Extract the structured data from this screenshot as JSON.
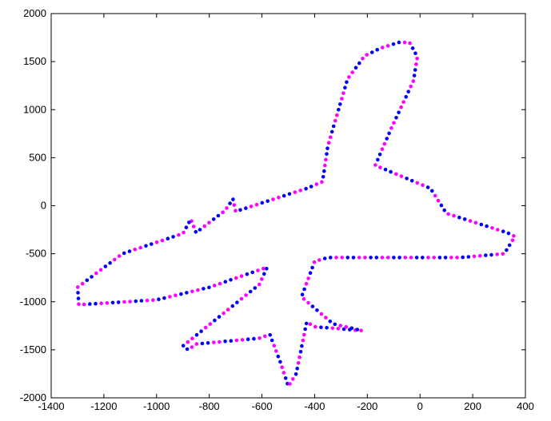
{
  "chart_data": {
    "type": "scatter",
    "title": "",
    "xlabel": "",
    "ylabel": "",
    "xlim": [
      -1400,
      400
    ],
    "ylim": [
      -2000,
      2000
    ],
    "x_ticks": [
      -1400,
      -1200,
      -1000,
      -800,
      -600,
      -400,
      -200,
      0,
      200,
      400
    ],
    "y_ticks": [
      -2000,
      -1500,
      -1000,
      -500,
      0,
      500,
      1000,
      1500,
      2000
    ],
    "x_tick_labels": [
      "-1400",
      "-1200",
      "-1000",
      "-800",
      "-600",
      "-400",
      "-200",
      "0",
      "200",
      "400"
    ],
    "y_tick_labels": [
      "-2000",
      "-1500",
      "-1000",
      "-500",
      "0",
      "500",
      "1000",
      "1500",
      "2000"
    ],
    "grid": false,
    "legend": "none",
    "series_colors": [
      "#0000ff",
      "#ff00ff"
    ],
    "outline": [
      [
        -80,
        1700
      ],
      [
        -150,
        1640
      ],
      [
        -210,
        1560
      ],
      [
        -275,
        1320
      ],
      [
        -350,
        620
      ],
      [
        -370,
        250
      ],
      [
        -430,
        180
      ],
      [
        -700,
        -60
      ],
      [
        -710,
        70
      ],
      [
        -740,
        -50
      ],
      [
        -850,
        -280
      ],
      [
        -870,
        -140
      ],
      [
        -900,
        -290
      ],
      [
        -1130,
        -500
      ],
      [
        -1300,
        -850
      ],
      [
        -1295,
        -1030
      ],
      [
        -1230,
        -1020
      ],
      [
        -1000,
        -980
      ],
      [
        -800,
        -850
      ],
      [
        -580,
        -640
      ],
      [
        -610,
        -820
      ],
      [
        -900,
        -1460
      ],
      [
        -880,
        -1500
      ],
      [
        -850,
        -1440
      ],
      [
        -610,
        -1380
      ],
      [
        -570,
        -1340
      ],
      [
        -530,
        -1630
      ],
      [
        -500,
        -1880
      ],
      [
        -470,
        -1750
      ],
      [
        -430,
        -1210
      ],
      [
        -400,
        -1260
      ],
      [
        -220,
        -1300
      ],
      [
        -330,
        -1230
      ],
      [
        -450,
        -950
      ],
      [
        -400,
        -580
      ],
      [
        -350,
        -540
      ],
      [
        150,
        -540
      ],
      [
        320,
        -500
      ],
      [
        360,
        -320
      ],
      [
        330,
        -280
      ],
      [
        100,
        -80
      ],
      [
        40,
        180
      ],
      [
        -170,
        420
      ],
      [
        -110,
        800
      ],
      [
        -25,
        1300
      ],
      [
        -10,
        1550
      ],
      [
        -40,
        1700
      ]
    ]
  }
}
